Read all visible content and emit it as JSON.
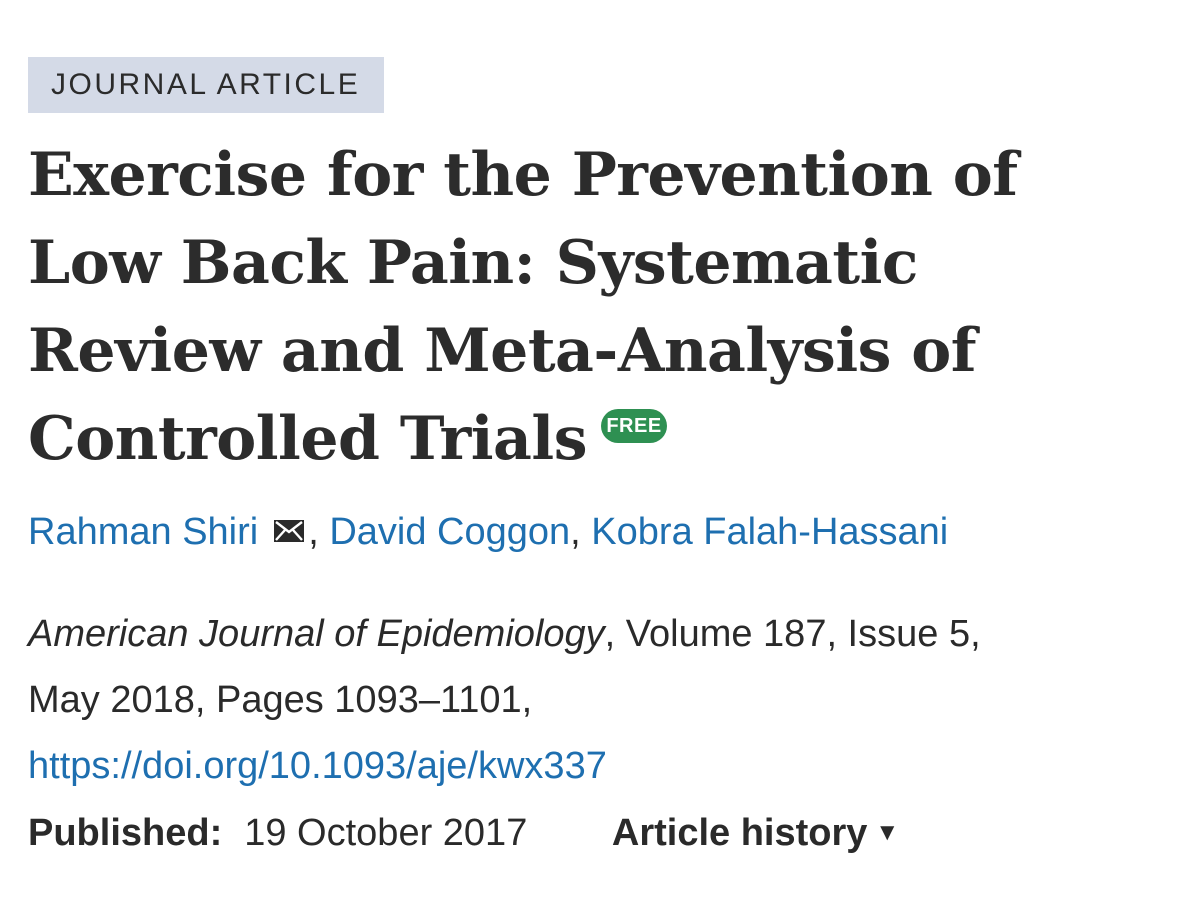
{
  "article": {
    "type_label": "JOURNAL ARTICLE",
    "title_lines": [
      "Exercise for the Prevention of",
      "Low Back Pain: Systematic",
      "Review and Meta-Analysis of",
      "Controlled Trials"
    ],
    "free_badge": "FREE",
    "badge_color": "#2e9052"
  },
  "authors": {
    "list": [
      "Rahman Shiri",
      "David Coggon",
      "Kobra Falah-Hassani"
    ],
    "separator": ",",
    "icon": "mail-icon",
    "link_color": "#1e6fb0"
  },
  "citation": {
    "journal": "American Journal of Epidemiology",
    "volume_issue": ", Volume 187, Issue 5,",
    "date_pages": "May 2018, Pages 1093–1101,",
    "doi": "https://doi.org/10.1093/aje/kwx337"
  },
  "published": {
    "label": "Published:",
    "date": "19 October 2017",
    "history_label": "Article history",
    "history_icon": "caret-down-icon"
  }
}
